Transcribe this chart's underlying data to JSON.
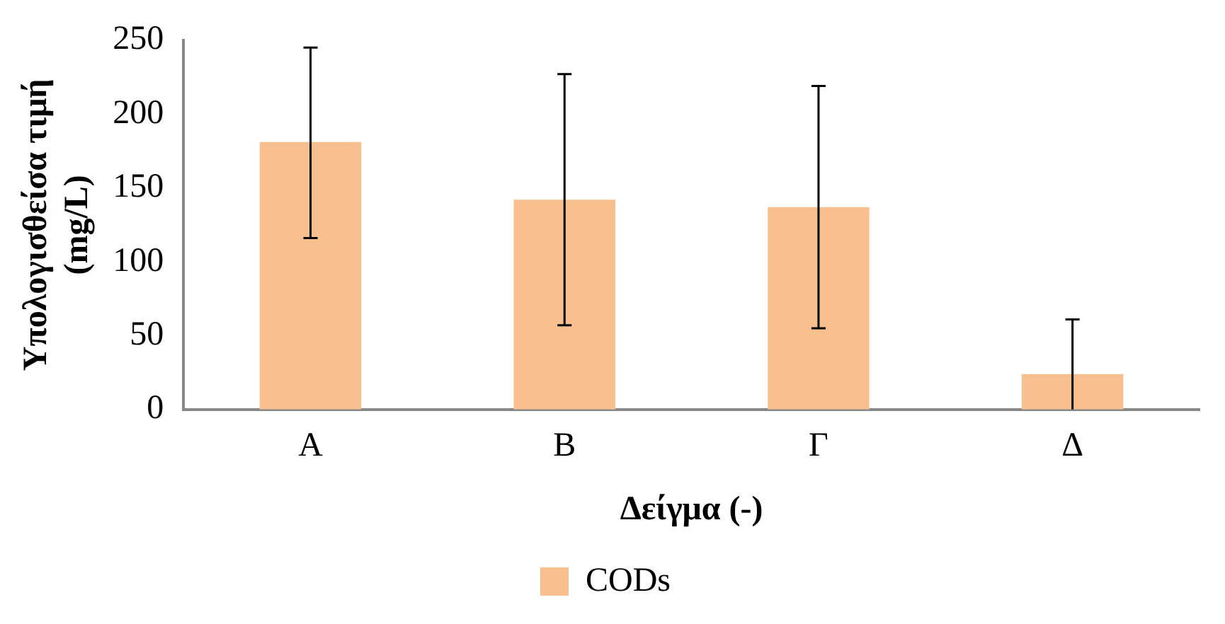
{
  "chart_data": {
    "type": "bar",
    "xlabel": "Δείγμα (-)",
    "ylabel": "Υπολογισθείσα τιμή\n(mg/L)",
    "categories": [
      "Α",
      "Β",
      "Γ",
      "Δ"
    ],
    "series": [
      {
        "name": "CODs",
        "color": "#f9c08f",
        "values": [
          181,
          142,
          137,
          24
        ],
        "errors": [
          [
            116,
            245
          ],
          [
            57,
            227
          ],
          [
            55,
            219
          ],
          [
            0,
            61
          ]
        ]
      }
    ],
    "ylim": [
      0,
      250
    ],
    "yticks": [
      0,
      50,
      100,
      150,
      200,
      250
    ],
    "grid": false,
    "legend": "bottom"
  }
}
